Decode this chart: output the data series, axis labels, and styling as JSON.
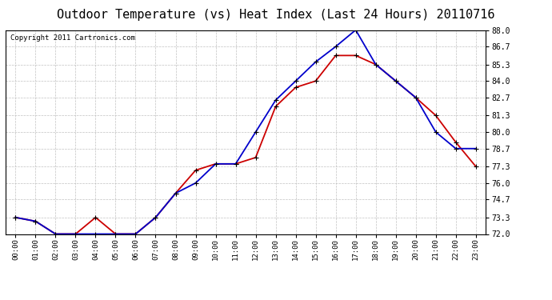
{
  "title": "Outdoor Temperature (vs) Heat Index (Last 24 Hours) 20110716",
  "copyright": "Copyright 2011 Cartronics.com",
  "hours": [
    "00:00",
    "01:00",
    "02:00",
    "03:00",
    "04:00",
    "05:00",
    "06:00",
    "07:00",
    "08:00",
    "09:00",
    "10:00",
    "11:00",
    "12:00",
    "13:00",
    "14:00",
    "15:00",
    "16:00",
    "17:00",
    "18:00",
    "19:00",
    "20:00",
    "21:00",
    "22:00",
    "23:00"
  ],
  "red_temp": [
    73.3,
    73.0,
    72.0,
    72.0,
    73.3,
    72.0,
    72.0,
    73.3,
    75.2,
    77.0,
    77.5,
    77.5,
    78.0,
    82.0,
    83.5,
    84.0,
    86.0,
    86.0,
    85.3,
    84.0,
    82.7,
    81.3,
    79.2,
    77.3
  ],
  "blue_heat": [
    73.3,
    73.0,
    72.0,
    72.0,
    72.0,
    72.0,
    72.0,
    73.3,
    75.2,
    76.0,
    77.5,
    77.5,
    80.0,
    82.5,
    84.0,
    85.5,
    86.7,
    88.0,
    85.3,
    84.0,
    82.7,
    80.0,
    78.7,
    78.7
  ],
  "ylim": [
    72.0,
    88.0
  ],
  "yticks": [
    72.0,
    73.3,
    74.7,
    76.0,
    77.3,
    78.7,
    80.0,
    81.3,
    82.7,
    84.0,
    85.3,
    86.7,
    88.0
  ],
  "red_color": "#cc0000",
  "blue_color": "#0000cc",
  "bg_color": "#ffffff",
  "plot_bg": "#ffffff",
  "grid_color": "#bbbbbb",
  "title_fontsize": 11,
  "copyright_fontsize": 6.5
}
